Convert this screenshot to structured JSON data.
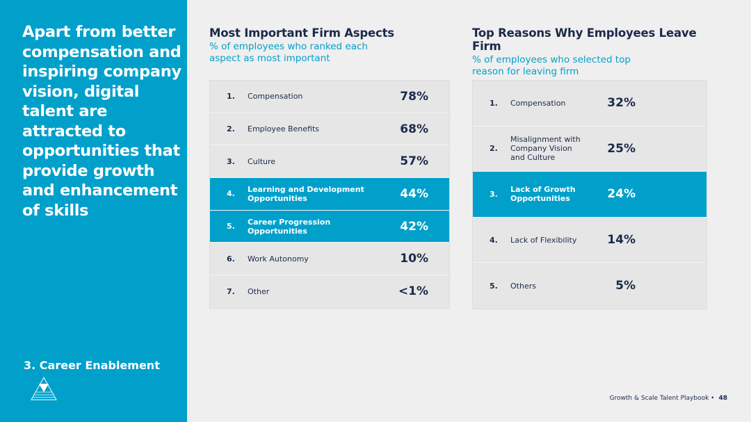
{
  "sidebar": {
    "headline": "Apart from better compensation and inspiring company vision, digital talent are attracted to opportunities that provide growth and enhancement of skills",
    "section": "3. Career Enablement",
    "logo_icon": "pyramid-icon"
  },
  "left": {
    "title": "Most Important Firm Aspects",
    "subtitle": "% of employees who ranked each aspect as most important",
    "rows": [
      {
        "num": "1.",
        "label": "Compensation",
        "value": "78%",
        "highlight": false
      },
      {
        "num": "2.",
        "label": "Employee Benefits",
        "value": "68%",
        "highlight": false
      },
      {
        "num": "3.",
        "label": "Culture",
        "value": "57%",
        "highlight": false
      },
      {
        "num": "4.",
        "label": "Learning and Development Opportunities",
        "value": "44%",
        "highlight": true
      },
      {
        "num": "5.",
        "label": "Career Progression Opportunities",
        "value": "42%",
        "highlight": true
      },
      {
        "num": "6.",
        "label": "Work Autonomy",
        "value": "10%",
        "highlight": false
      },
      {
        "num": "7.",
        "label": "Other",
        "value": "<1%",
        "highlight": false
      }
    ]
  },
  "right": {
    "title": "Top Reasons Why Employees Leave Firm",
    "subtitle": "% of employees who selected top reason for leaving firm",
    "rows": [
      {
        "num": "1.",
        "label": "Compensation",
        "value": "32%",
        "highlight": false
      },
      {
        "num": "2.",
        "label": "Misalignment with Company Vision and Culture",
        "value": "25%",
        "highlight": false
      },
      {
        "num": "3.",
        "label": "Lack of Growth Opportunities",
        "value": "24%",
        "highlight": true
      },
      {
        "num": "4.",
        "label": "Lack of Flexibility",
        "value": "14%",
        "highlight": false
      },
      {
        "num": "5.",
        "label": "Others",
        "value": "5%",
        "highlight": false
      }
    ]
  },
  "footer": {
    "text": "Growth & Scale Talent Playbook  •",
    "page": "48"
  },
  "colors": {
    "accent": "#00a0cb",
    "navy": "#1b2a4a",
    "background": "#efefef"
  }
}
